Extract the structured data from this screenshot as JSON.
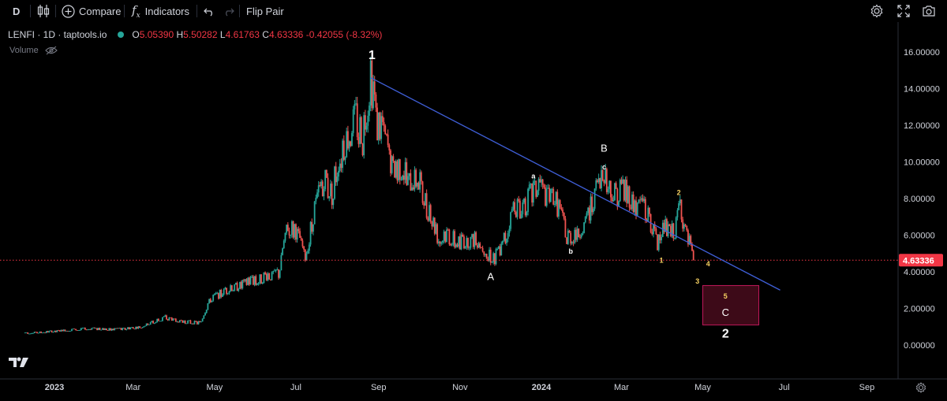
{
  "toolbar": {
    "interval": "D",
    "compare_label": "Compare",
    "indicators_label": "Indicators",
    "flip_label": "Flip Pair"
  },
  "legend": {
    "symbol": "LENFI · 1D · taptools.io",
    "open_k": "O",
    "open": "5.05390",
    "high_k": "H",
    "high": "5.50282",
    "low_k": "L",
    "low": "4.61763",
    "close_k": "C",
    "close": "4.63336",
    "change": "-0.42055 (-8.32%)",
    "volume_label": "Volume"
  },
  "colors": {
    "up": "#26a69a",
    "down": "#ef5350",
    "trendline": "#3f5fd8",
    "price_line": "#f23645",
    "zone_fill": "#3d0a18",
    "zone_border": "#c2185b",
    "sub_wave_label": "#f5d061"
  },
  "icons": [
    "candles-icon",
    "add-circle-icon",
    "fx-icon",
    "undo-icon",
    "redo-icon",
    "gear-icon",
    "fullscreen-icon",
    "camera-icon",
    "eye-off-icon",
    "tradingview-logo"
  ],
  "chart_data": {
    "type": "candlestick",
    "symbol": "LENFI",
    "interval": "1D",
    "ylim": [
      -1.5,
      17.5
    ],
    "y_ticks": [
      "16.00000",
      "14.00000",
      "12.00000",
      "10.00000",
      "8.00000",
      "6.00000",
      "4.00000",
      "2.00000",
      "0.00000"
    ],
    "x_ticks": [
      "2023",
      "Mar",
      "May",
      "Jul",
      "Sep",
      "Nov",
      "2024",
      "Mar",
      "May",
      "Jul",
      "Sep"
    ],
    "current_price": "4.63336",
    "price_path": [
      [
        "2022-12-10",
        0.65
      ],
      [
        "2023-01-01",
        0.75
      ],
      [
        "2023-01-25",
        0.9
      ],
      [
        "2023-02-15",
        0.85
      ],
      [
        "2023-03-05",
        0.95
      ],
      [
        "2023-03-25",
        1.5
      ],
      [
        "2023-04-05",
        1.3
      ],
      [
        "2023-04-20",
        1.2
      ],
      [
        "2023-04-28",
        2.5
      ],
      [
        "2023-05-10",
        3.0
      ],
      [
        "2023-05-25",
        3.4
      ],
      [
        "2023-06-08",
        3.7
      ],
      [
        "2023-06-18",
        3.9
      ],
      [
        "2023-06-25",
        6.5
      ],
      [
        "2023-07-02",
        6.0
      ],
      [
        "2023-07-08",
        4.8
      ],
      [
        "2023-07-15",
        7.5
      ],
      [
        "2023-07-22",
        9.0
      ],
      [
        "2023-07-28",
        8.3
      ],
      [
        "2023-08-02",
        10.2
      ],
      [
        "2023-08-08",
        11.0
      ],
      [
        "2023-08-14",
        12.6
      ],
      [
        "2023-08-20",
        11.2
      ],
      [
        "2023-08-26",
        14.4
      ],
      [
        "2023-08-31",
        12.0
      ],
      [
        "2023-09-05",
        11.3
      ],
      [
        "2023-09-10",
        10.0
      ],
      [
        "2023-09-14",
        9.3
      ],
      [
        "2023-09-18",
        9.8
      ],
      [
        "2023-09-24",
        8.7
      ],
      [
        "2023-09-30",
        9.4
      ],
      [
        "2023-10-05",
        7.9
      ],
      [
        "2023-10-10",
        7.0
      ],
      [
        "2023-10-15",
        6.0
      ],
      [
        "2023-10-25",
        5.8
      ],
      [
        "2023-11-05",
        5.6
      ],
      [
        "2023-11-15",
        5.8
      ],
      [
        "2023-11-22",
        5.0
      ],
      [
        "2023-11-26",
        4.7
      ],
      [
        "2023-12-02",
        5.2
      ],
      [
        "2023-12-07",
        6.5
      ],
      [
        "2023-12-12",
        7.6
      ],
      [
        "2023-12-18",
        7.4
      ],
      [
        "2023-12-24",
        8.3
      ],
      [
        "2023-12-29",
        8.8
      ],
      [
        "2024-01-04",
        8.0
      ],
      [
        "2024-01-10",
        8.2
      ],
      [
        "2024-01-16",
        7.0
      ],
      [
        "2024-01-20",
        5.8
      ],
      [
        "2024-01-26",
        6.0
      ],
      [
        "2024-02-02",
        6.4
      ],
      [
        "2024-02-08",
        7.8
      ],
      [
        "2024-02-13",
        8.8
      ],
      [
        "2024-02-17",
        9.5
      ],
      [
        "2024-02-21",
        8.6
      ],
      [
        "2024-02-26",
        8.1
      ],
      [
        "2024-03-02",
        8.6
      ],
      [
        "2024-03-07",
        8.0
      ],
      [
        "2024-03-13",
        7.4
      ],
      [
        "2024-03-18",
        7.5
      ],
      [
        "2024-03-23",
        6.6
      ],
      [
        "2024-03-28",
        5.5
      ],
      [
        "2024-04-02",
        6.6
      ],
      [
        "2024-04-07",
        6.2
      ],
      [
        "2024-04-10",
        6.2
      ],
      [
        "2024-04-14",
        7.6
      ],
      [
        "2024-04-17",
        6.3
      ],
      [
        "2024-04-21",
        5.6
      ],
      [
        "2024-04-24",
        4.63
      ]
    ],
    "trendline": {
      "from": [
        "2023-08-26",
        14.6
      ],
      "to": [
        "2024-06-28",
        3.0
      ]
    },
    "target_zone": {
      "from": [
        "2024-05-01",
        3.25
      ],
      "to": [
        "2024-06-12",
        1.1
      ]
    },
    "wave_labels": [
      {
        "text": "1",
        "date": "2023-08-27",
        "price": 15.8,
        "style": "major"
      },
      {
        "text": "A",
        "date": "2023-11-24",
        "price": 3.7,
        "style": "mid"
      },
      {
        "text": "a",
        "date": "2023-12-26",
        "price": 9.2,
        "style": "minor"
      },
      {
        "text": "b",
        "date": "2024-01-23",
        "price": 5.1,
        "style": "minor"
      },
      {
        "text": "B",
        "date": "2024-02-17",
        "price": 10.7,
        "style": "mid"
      },
      {
        "text": "c",
        "date": "2024-02-17",
        "price": 9.7,
        "style": "minor"
      },
      {
        "text": "1",
        "date": "2024-03-31",
        "price": 4.6,
        "style": "sub"
      },
      {
        "text": "2",
        "date": "2024-04-13",
        "price": 8.3,
        "style": "sub"
      },
      {
        "text": "3",
        "date": "2024-04-27",
        "price": 3.45,
        "style": "sub"
      },
      {
        "text": "4",
        "date": "2024-05-05",
        "price": 4.4,
        "style": "sub"
      },
      {
        "text": "5",
        "date": "2024-05-18",
        "price": 2.65,
        "style": "sub"
      },
      {
        "text": "C",
        "date": "2024-05-18",
        "price": 1.75,
        "style": "mid"
      },
      {
        "text": "2",
        "date": "2024-05-18",
        "price": 0.6,
        "style": "major"
      }
    ],
    "grid": false,
    "legend": "top-left"
  }
}
